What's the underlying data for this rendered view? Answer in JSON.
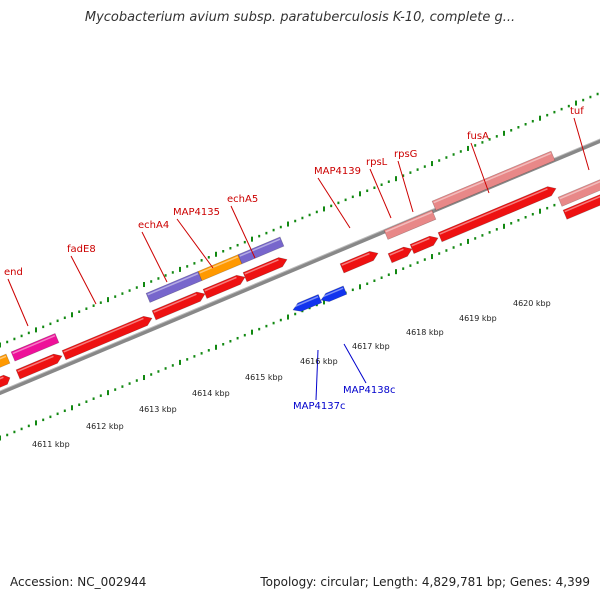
{
  "header": {
    "title": "Mycobacterium avium subsp. paratuberculosis K-10, complete g..."
  },
  "footer": {
    "accession": "Accession: NC_002944",
    "summary": "Topology: circular; Length: 4,829,781 bp; Genes: 4,399"
  },
  "colors": {
    "forward_label": "#cc0000",
    "reverse_label": "#0000cc",
    "cds_red": "#ee1111",
    "cds_pink": "#e88888",
    "cds_purple": "#7766cc",
    "cds_orange": "#ff9900",
    "cds_magenta": "#ee1199",
    "cds_blue": "#1133ee",
    "backbone": "#888888",
    "tick_green": "#118811"
  },
  "forward_gene_labels": [
    "end",
    "fadE8",
    "echA4",
    "MAP4135",
    "echA5",
    "MAP4139",
    "rpsL",
    "rpsG",
    "fusA",
    "tuf"
  ],
  "reverse_gene_labels": [
    "MAP4137c",
    "MAP4138c"
  ],
  "scale_labels": [
    "4611 kbp",
    "4612 kbp",
    "4613 kbp",
    "4614 kbp",
    "4615 kbp",
    "4616 kbp",
    "4617 kbp",
    "4618 kbp",
    "4619 kbp",
    "4620 kbp"
  ]
}
